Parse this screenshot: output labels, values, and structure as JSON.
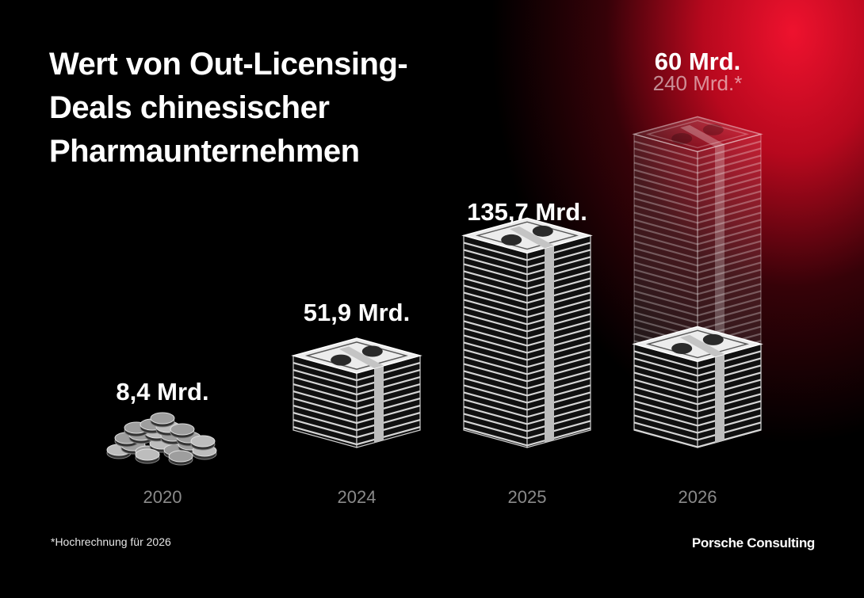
{
  "title_lines": [
    "Wert von Out-Licensing-",
    "Deals chinesischer",
    "Pharmaunternehmen"
  ],
  "chart_data": {
    "type": "bar",
    "title": "Wert von Out-Licensing-Deals chinesischer Pharmaunternehmen",
    "categories": [
      "2020",
      "2024",
      "2025",
      "2026"
    ],
    "value_labels": [
      "8,4 Mrd.",
      "51,9 Mrd.",
      "135,7 Mrd.",
      "60 Mrd."
    ],
    "projection_label": "240 Mrd.*",
    "series": [
      {
        "values": [
          8.4,
          51.9,
          135.7,
          60
        ]
      },
      {
        "values": [
          null,
          null,
          null,
          240
        ]
      }
    ],
    "unit": "Mrd.",
    "grid": false,
    "legend": "none"
  },
  "footnote": "*Hochrechnung für 2026",
  "brand": "Porsche Consulting",
  "colors": {
    "background": "#000000",
    "accent_red": "#e8142c",
    "stack_gray": "#d8d8d8",
    "text": "#ffffff",
    "year": "#8a8a8a"
  }
}
